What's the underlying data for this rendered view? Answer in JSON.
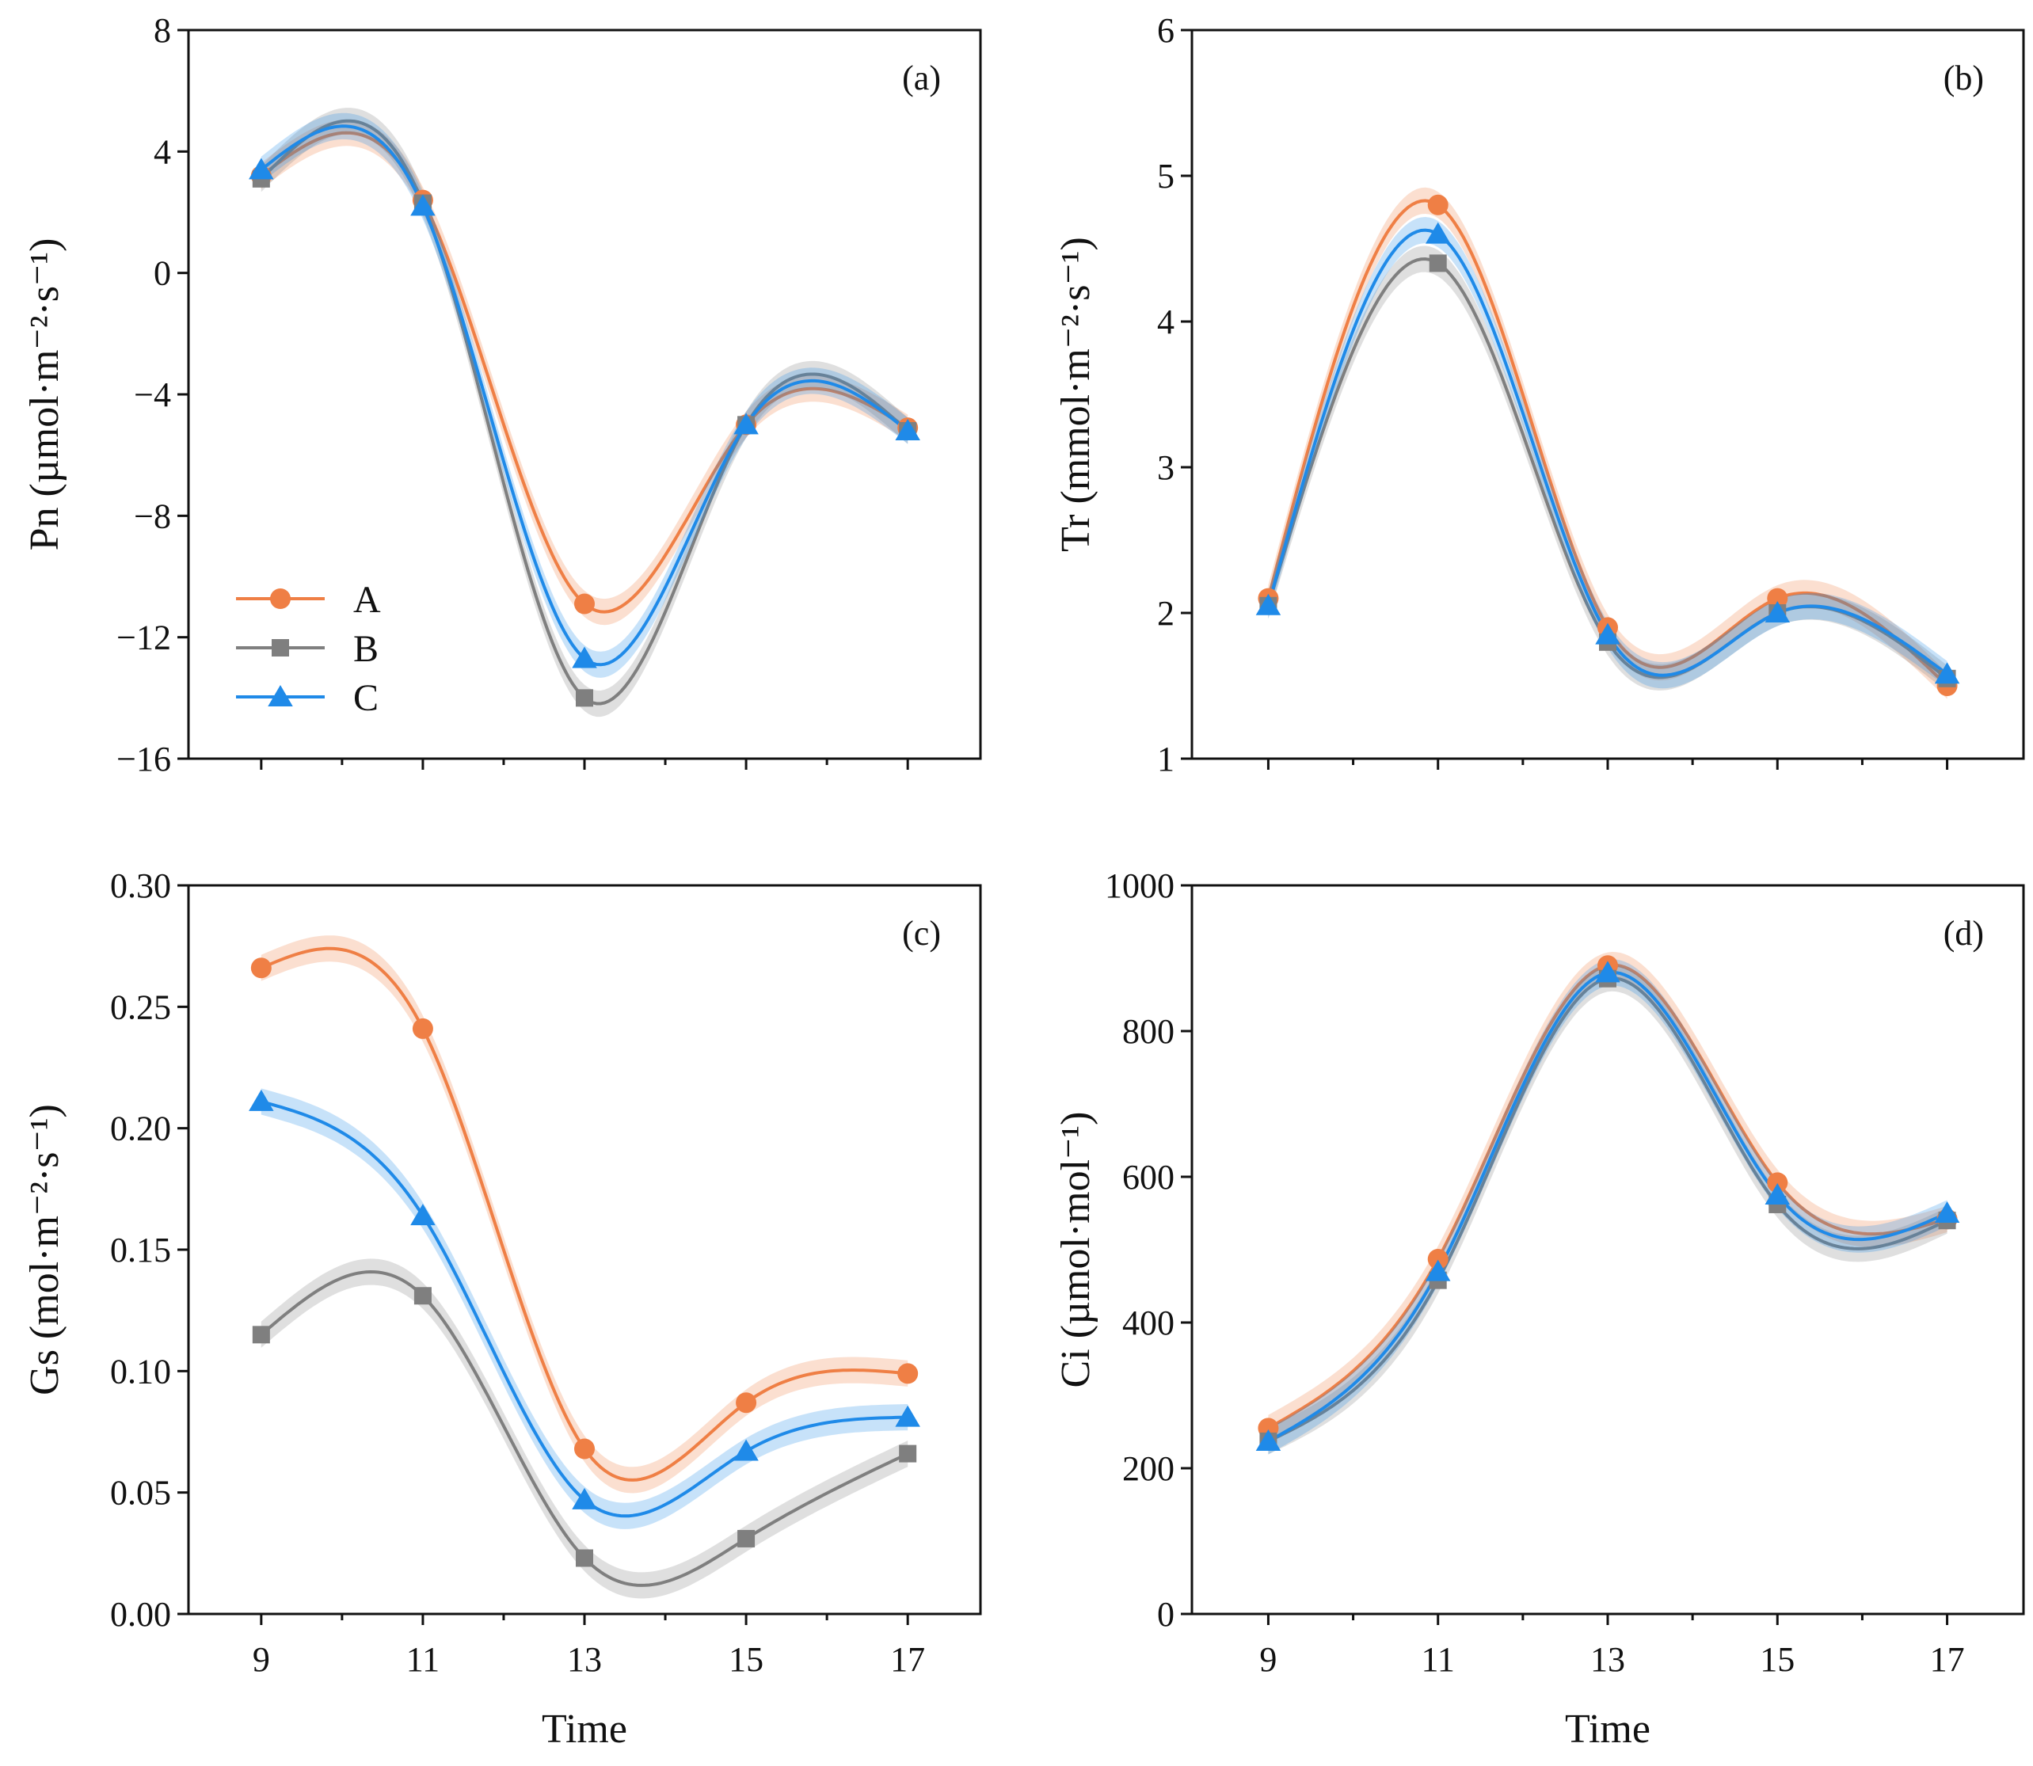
{
  "legend": [
    {
      "name": "A",
      "color": "#ef7f45",
      "marker": "circle"
    },
    {
      "name": "B",
      "color": "#7f7f7f",
      "marker": "square"
    },
    {
      "name": "C",
      "color": "#1f8ae8",
      "marker": "triangle"
    }
  ],
  "chart_data": [
    {
      "type": "line",
      "panel_label": "(a)",
      "title": "",
      "xlabel": "",
      "ylabel": "Pn (µmol·m⁻²·s⁻¹)",
      "x": [
        9,
        11,
        13,
        15,
        17
      ],
      "xlim": [
        8.1,
        17.9
      ],
      "x_ticks": [
        9,
        11,
        13,
        15,
        17
      ],
      "x_minor_ticks": [
        10,
        12,
        14,
        16
      ],
      "show_x_tick_labels": false,
      "ylim": [
        -16,
        8
      ],
      "y_ticks": [
        8,
        4,
        0,
        -4,
        -8,
        -12,
        -16
      ],
      "y_tick_labels": [
        "8",
        "4",
        "0",
        "−4",
        "−8",
        "−12",
        "−16"
      ],
      "legend_position": "lower-left",
      "series": [
        {
          "name": "A",
          "values": [
            3.2,
            2.4,
            -10.9,
            -5.0,
            -5.1
          ]
        },
        {
          "name": "B",
          "values": [
            3.1,
            2.3,
            -14.0,
            -5.0,
            -5.2
          ]
        },
        {
          "name": "C",
          "values": [
            3.4,
            2.2,
            -12.7,
            -5.0,
            -5.2
          ]
        }
      ]
    },
    {
      "type": "line",
      "panel_label": "(b)",
      "title": "",
      "xlabel": "",
      "ylabel": "Tr (mmol·m⁻²·s⁻¹)",
      "x": [
        9,
        11,
        13,
        15,
        17
      ],
      "xlim": [
        8.1,
        17.9
      ],
      "x_ticks": [
        9,
        11,
        13,
        15,
        17
      ],
      "x_minor_ticks": [
        10,
        12,
        14,
        16
      ],
      "show_x_tick_labels": false,
      "ylim": [
        1,
        6
      ],
      "y_ticks": [
        6,
        5,
        4,
        3,
        2,
        1
      ],
      "y_tick_labels": [
        "6",
        "5",
        "4",
        "3",
        "2",
        "1"
      ],
      "series": [
        {
          "name": "A",
          "values": [
            2.1,
            4.8,
            1.9,
            2.1,
            1.5
          ]
        },
        {
          "name": "B",
          "values": [
            2.05,
            4.4,
            1.8,
            2.0,
            1.55
          ]
        },
        {
          "name": "C",
          "values": [
            2.05,
            4.6,
            1.85,
            2.0,
            1.58
          ]
        }
      ]
    },
    {
      "type": "line",
      "panel_label": "(c)",
      "title": "",
      "xlabel": "Time",
      "ylabel": "Gs (mol·m⁻²·s⁻¹)",
      "x": [
        9,
        11,
        13,
        15,
        17
      ],
      "xlim": [
        8.1,
        17.9
      ],
      "x_ticks": [
        9,
        11,
        13,
        15,
        17
      ],
      "x_minor_ticks": [
        10,
        12,
        14,
        16
      ],
      "show_x_tick_labels": true,
      "x_tick_labels": [
        "9",
        "11",
        "13",
        "15",
        "17"
      ],
      "ylim": [
        0,
        0.3
      ],
      "y_ticks": [
        0.3,
        0.25,
        0.2,
        0.15,
        0.1,
        0.05,
        0
      ],
      "y_tick_labels": [
        "0.30",
        "0.25",
        "0.20",
        "0.15",
        "0.10",
        "0.05",
        "0.00"
      ],
      "series": [
        {
          "name": "A",
          "values": [
            0.266,
            0.241,
            0.068,
            0.087,
            0.099
          ]
        },
        {
          "name": "B",
          "values": [
            0.115,
            0.131,
            0.023,
            0.031,
            0.066
          ]
        },
        {
          "name": "C",
          "values": [
            0.211,
            0.164,
            0.047,
            0.067,
            0.081
          ]
        }
      ]
    },
    {
      "type": "line",
      "panel_label": "(d)",
      "title": "",
      "xlabel": "Time",
      "ylabel": "Ci (µmol·mol⁻¹)",
      "x": [
        9,
        11,
        13,
        15,
        17
      ],
      "xlim": [
        8.1,
        17.9
      ],
      "x_ticks": [
        9,
        11,
        13,
        15,
        17
      ],
      "x_minor_ticks": [
        10,
        12,
        14,
        16
      ],
      "show_x_tick_labels": true,
      "x_tick_labels": [
        "9",
        "11",
        "13",
        "15",
        "17"
      ],
      "ylim": [
        0,
        1000
      ],
      "y_ticks": [
        1000,
        800,
        600,
        400,
        200,
        0
      ],
      "y_tick_labels": [
        "1000",
        "800",
        "600",
        "400",
        "200",
        "0"
      ],
      "series": [
        {
          "name": "A",
          "values": [
            255,
            487,
            890,
            592,
            542
          ]
        },
        {
          "name": "B",
          "values": [
            237,
            458,
            872,
            562,
            540
          ]
        },
        {
          "name": "C",
          "values": [
            237,
            470,
            880,
            575,
            550
          ]
        }
      ]
    }
  ]
}
